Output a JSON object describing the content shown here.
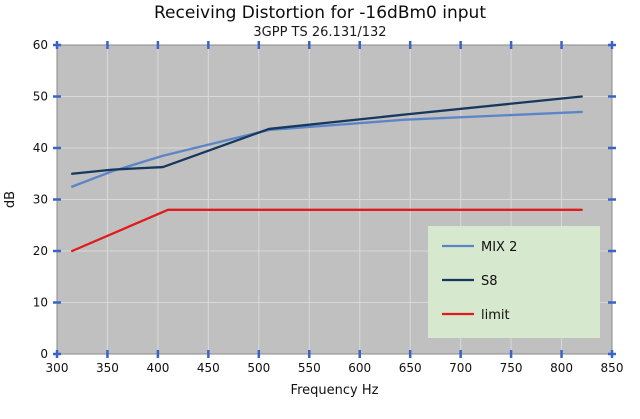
{
  "chart_data": {
    "type": "line",
    "title": "Receiving Distortion for -16dBm0 input",
    "subtitle": "3GPP TS 26.131/132",
    "xlabel": "Frequency Hz",
    "ylabel": "dB",
    "xlim": [
      300,
      850
    ],
    "ylim": [
      0,
      60
    ],
    "xticks": [
      300,
      350,
      400,
      450,
      500,
      550,
      600,
      650,
      700,
      750,
      800,
      850
    ],
    "yticks": [
      0,
      10,
      20,
      30,
      40,
      50,
      60
    ],
    "grid": true,
    "legend_position": "inside-right-bottom",
    "colors": {
      "plot_background": "#c0c0c0",
      "gridline": "#d9d9d9",
      "frame": "#8a8a8a",
      "tick": "#3a63c8",
      "legend_background": "#d6e8cd"
    },
    "series": [
      {
        "name": "MIX 2",
        "color": "#5c85c7",
        "points": [
          [
            315,
            32.5
          ],
          [
            355,
            35.5
          ],
          [
            405,
            38.5
          ],
          [
            510,
            43.5
          ],
          [
            645,
            45.5
          ],
          [
            820,
            47
          ]
        ]
      },
      {
        "name": "S8",
        "color": "#17375e",
        "points": [
          [
            315,
            35
          ],
          [
            355,
            35.8
          ],
          [
            405,
            36.3
          ],
          [
            510,
            43.7
          ],
          [
            645,
            46.5
          ],
          [
            820,
            50
          ]
        ]
      },
      {
        "name": "limit",
        "color": "#e01b1b",
        "points": [
          [
            315,
            20
          ],
          [
            410,
            28
          ],
          [
            820,
            28
          ]
        ]
      }
    ]
  }
}
